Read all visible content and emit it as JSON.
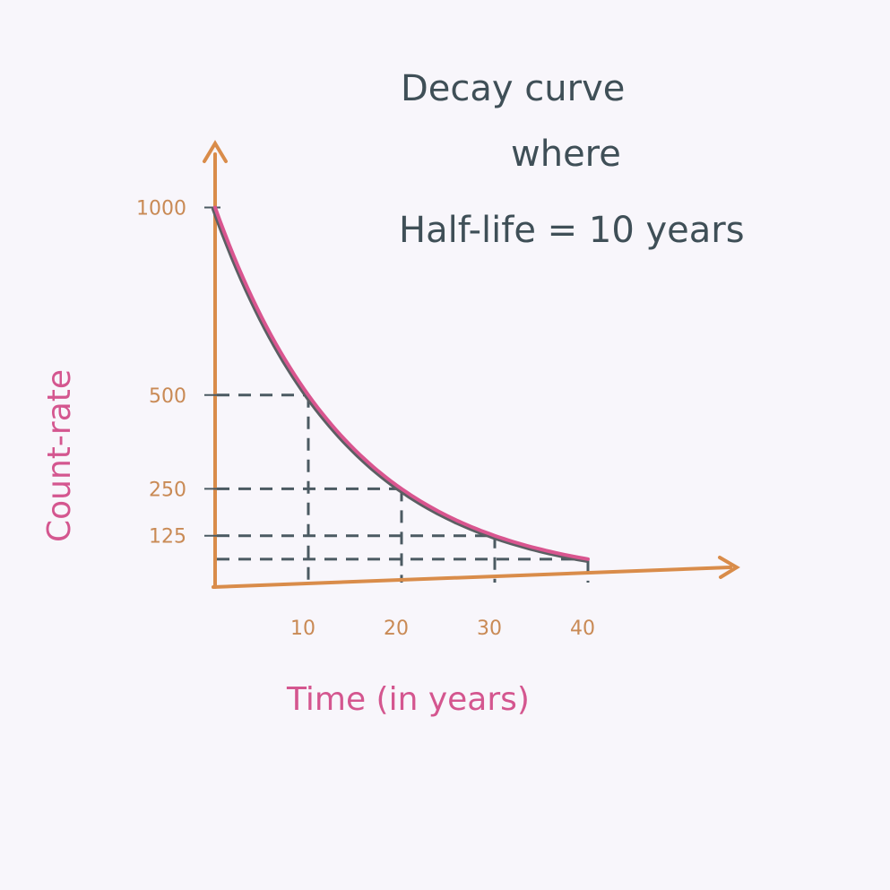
{
  "chart_data": {
    "type": "line",
    "title_lines": [
      "Decay curve",
      "where",
      "Half-life = 10 years"
    ],
    "xlabel": "Time (in years)",
    "ylabel": "Count-rate",
    "x_ticks": [
      "10",
      "20",
      "30",
      "40"
    ],
    "y_ticks": [
      "1000",
      "500",
      "250",
      "125"
    ],
    "xlim": [
      0,
      45
    ],
    "ylim": [
      0,
      1000
    ],
    "series": [
      {
        "x": [
          0,
          10,
          20,
          30,
          40
        ],
        "values": [
          1000,
          500,
          250,
          125,
          62.5
        ]
      }
    ],
    "guide_lines": [
      {
        "x": 10,
        "y": 500
      },
      {
        "x": 20,
        "y": 250
      },
      {
        "x": 30,
        "y": 125
      },
      {
        "x": 40,
        "y": 62.5
      }
    ],
    "grid": false,
    "colors": {
      "axes": "#d98c4a",
      "curve": "#d9558f",
      "curve_shadow": "#5b5f63",
      "guides": "#4b5a62",
      "title": "#3f4f57",
      "tick_labels": "#c98a55",
      "axis_titles": "#d4568f"
    }
  }
}
